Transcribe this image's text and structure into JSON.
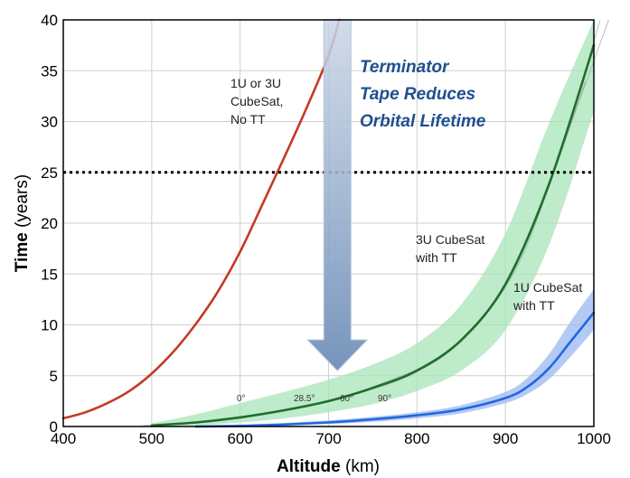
{
  "chart_data": {
    "type": "line",
    "title": "",
    "xlabel": "Altitude (km)",
    "xlabel_bold": "Altitude",
    "xlabel_unit": "(km)",
    "ylabel": "Time (years)",
    "ylabel_bold": "Time",
    "ylabel_unit": "(years)",
    "xlim": [
      400,
      1000
    ],
    "ylim": [
      0,
      40
    ],
    "xticks": [
      "400",
      "500",
      "600",
      "700",
      "800",
      "900",
      "1000"
    ],
    "yticks": [
      "0",
      "5",
      "10",
      "15",
      "20",
      "25",
      "30",
      "35",
      "40"
    ],
    "grid": true,
    "threshold": {
      "y": 25,
      "style": "dotted",
      "color": "#000000"
    },
    "series": [
      {
        "name": "1U or 3U CubeSat, No TT",
        "color": "#c43a24",
        "x": [
          400,
          425,
          450,
          475,
          500,
          525,
          550,
          575,
          600,
          625,
          650,
          675,
          700,
          712
        ],
        "y": [
          0.8,
          1.4,
          2.3,
          3.5,
          5.2,
          7.4,
          10.1,
          13.3,
          17.2,
          21.8,
          26.5,
          31.3,
          36.5,
          40
        ]
      },
      {
        "name": "3U CubeSat with TT",
        "color": "#1e6e2c",
        "band_color": "#a8e4b8",
        "x": [
          500,
          550,
          600,
          650,
          700,
          750,
          800,
          850,
          900,
          950,
          1000
        ],
        "y": [
          0.1,
          0.4,
          0.9,
          1.6,
          2.5,
          3.8,
          5.5,
          8.5,
          14,
          24,
          37.5
        ],
        "lower": [
          0,
          0.1,
          0.4,
          0.8,
          1.4,
          2.2,
          3.5,
          5.5,
          9.5,
          18,
          31
        ],
        "upper": [
          0.3,
          1.2,
          2.3,
          3.4,
          4.6,
          6.1,
          8.2,
          12,
          19,
          30,
          40
        ]
      },
      {
        "name": "1U CubeSat with TT",
        "color": "#2466e0",
        "band_color": "#9ab8f0",
        "x": [
          550,
          600,
          650,
          700,
          750,
          800,
          850,
          900,
          925,
          950,
          975,
          1000
        ],
        "y": [
          0,
          0.05,
          0.2,
          0.4,
          0.7,
          1.1,
          1.7,
          2.8,
          3.9,
          5.8,
          8.5,
          11.2
        ],
        "lower": [
          0,
          0,
          0.1,
          0.25,
          0.45,
          0.8,
          1.3,
          2.3,
          3.2,
          4.7,
          7,
          9.5
        ],
        "upper": [
          0.1,
          0.2,
          0.35,
          0.6,
          0.95,
          1.4,
          2.1,
          3.4,
          4.8,
          7.2,
          10.5,
          13.5
        ]
      }
    ],
    "annotations": {
      "red_label": [
        "1U or 3U",
        "CubeSat,",
        "No TT"
      ],
      "green_label": [
        "3U CubeSat",
        "with TT"
      ],
      "blue_label": [
        "1U CubeSat",
        "with TT"
      ],
      "headline": [
        "Terminator",
        "Tape Reduces",
        "Orbital Lifetime"
      ],
      "inclinations": [
        "0°",
        "28.5°",
        "60°",
        "90°"
      ]
    },
    "arrow": {
      "x": 710,
      "y_from": 40,
      "y_to": 5.5,
      "color": "#6f8fb8"
    }
  }
}
